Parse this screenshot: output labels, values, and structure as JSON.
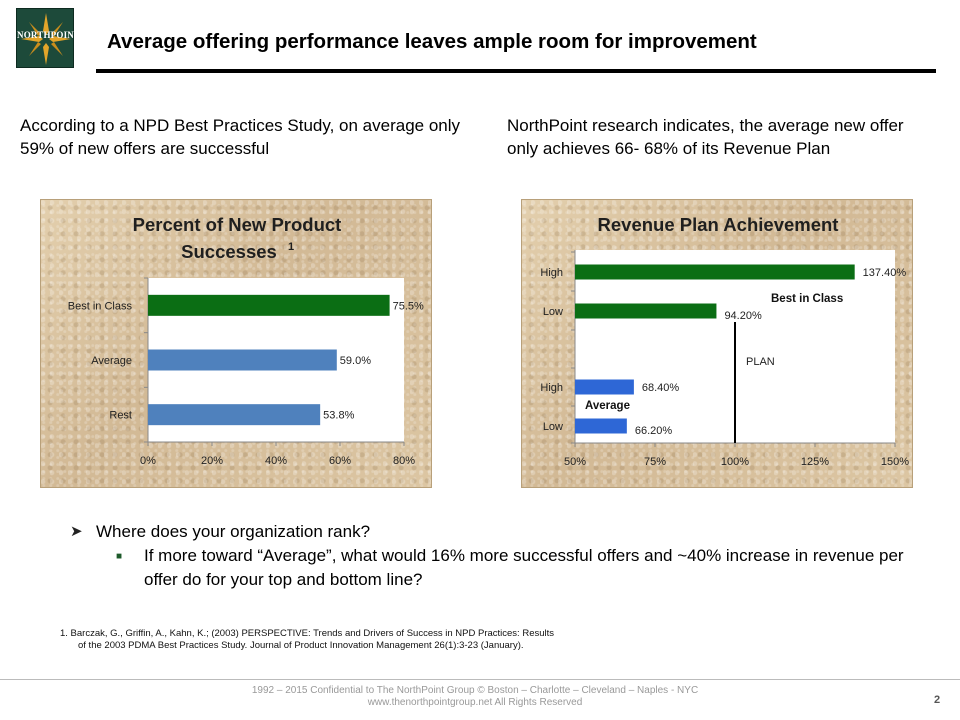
{
  "logo": {
    "text": "NORTHPOINT"
  },
  "header": {
    "title": "Average offering performance leaves ample room for improvement"
  },
  "intro_left": "According to a NPD Best Practices Study, on average only 59% of new offers are successful",
  "intro_right": "NorthPoint research indicates, the average new offer only achieves 66- 68% of its Revenue Plan",
  "colors": {
    "green": "#0b6e14",
    "blue": "#4a7fc4",
    "bright_blue": "#2e67d6"
  },
  "chart_data": [
    {
      "type": "bar",
      "orientation": "horizontal",
      "title": "Percent of New Product Successes",
      "title_superscript": "1",
      "categories": [
        "Best in Class",
        "Average",
        "Rest"
      ],
      "values": [
        75.5,
        59.0,
        53.8
      ],
      "data_labels": [
        "75.5%",
        "59.0%",
        "53.8%"
      ],
      "bar_colors": [
        "#0b6e14",
        "#4f81bd",
        "#4f81bd"
      ],
      "xlim": [
        0,
        80
      ],
      "xticks": [
        "0%",
        "20%",
        "40%",
        "60%",
        "80%"
      ],
      "xlabel": "",
      "ylabel": "",
      "grid": false
    },
    {
      "type": "bar",
      "orientation": "horizontal",
      "title": "Revenue Plan Achievement",
      "categories": [
        "High",
        "Low",
        "High",
        "Low"
      ],
      "values": [
        137.4,
        94.2,
        68.4,
        66.2
      ],
      "data_labels": [
        "137.40%",
        "94.20%",
        "68.40%",
        "66.20%"
      ],
      "bar_colors": [
        "#0b6e14",
        "#0b6e14",
        "#2e67d6",
        "#2e67d6"
      ],
      "groups": [
        {
          "name": "Best in Class",
          "categories": [
            0,
            1
          ]
        },
        {
          "name": "Average",
          "categories": [
            2,
            3
          ]
        }
      ],
      "reference_line": {
        "value": 100,
        "label": "PLAN"
      },
      "xlim": [
        50,
        150
      ],
      "xticks": [
        "50%",
        "75%",
        "100%",
        "125%",
        "150%"
      ],
      "xlabel": "",
      "ylabel": "",
      "grid": false
    }
  ],
  "bullets": {
    "q": "Where does your organization rank?",
    "sub": "If more toward “Average”, what would 16% more successful offers and ~40% increase in revenue per offer do for your top and bottom line?"
  },
  "footnote": {
    "line1": "1.  Barczak, G., Griffin, A., Kahn, K.; (2003) PERSPECTIVE: Trends and Drivers of Success in NPD Practices: Results",
    "line2": "of the 2003 PDMA Best Practices Study. Journal of Product Innovation Management 26(1):3-23 (January)."
  },
  "footer": {
    "line1": "1992 – 2015 Confidential to The NorthPoint Group ©  Boston – Charlotte – Cleveland – Naples - NYC",
    "line2": "www.thenorthpointgroup.net  All Rights Reserved"
  },
  "page_number": "2"
}
